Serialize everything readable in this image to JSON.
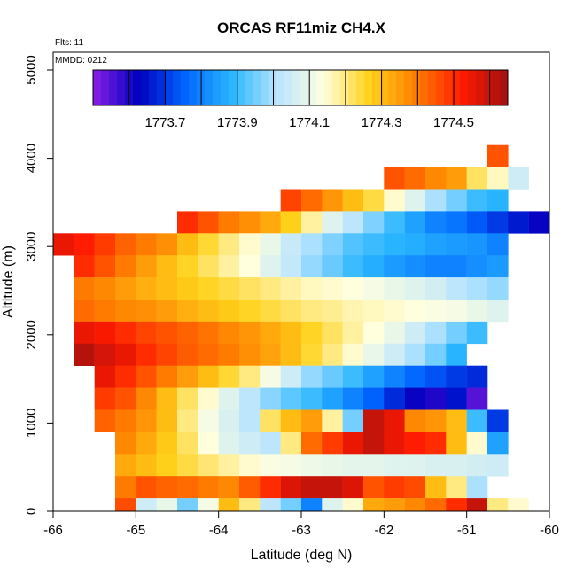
{
  "chart_data": {
    "type": "heatmap",
    "title": "ORCAS RF11miz CH4.X",
    "xlabel": "Latitude (deg N)",
    "ylabel": "Altitude (m)",
    "annotations": [
      "Flts: 11",
      "MMDD: 0212"
    ],
    "xlim": [
      -66,
      -60
    ],
    "ylim": [
      0,
      5250
    ],
    "x_ticks": [
      -66,
      -65,
      -64,
      -63,
      -62,
      -61,
      -60
    ],
    "x_tick_labels": [
      "-66",
      "-65",
      "-64",
      "-63",
      "-62",
      "-61",
      "-60"
    ],
    "y_ticks": [
      0,
      1000,
      2000,
      3000,
      4000,
      5000
    ],
    "y_tick_labels": [
      "0",
      "1000",
      "2000",
      "3000",
      "4000",
      "5000"
    ],
    "colorbar": {
      "min": 1773.5,
      "max": 1774.65,
      "ticks": [
        1773.7,
        1773.9,
        1774.1,
        1774.3,
        1774.5
      ],
      "tick_labels": [
        "1773.7",
        "1773.9",
        "1774.1",
        "1774.3",
        "1774.5"
      ],
      "palette": [
        "#8a1fe6",
        "#0000c0",
        "#0066ff",
        "#29b6ff",
        "#b8e4ff",
        "#ffffe0",
        "#ffd21a",
        "#ff7f00",
        "#ff1a00",
        "#a01010"
      ]
    },
    "cell_lat_width": 0.25,
    "cell_alt_height": 250,
    "lat_start": -66.0,
    "cells": [
      {
        "alt": 3900,
        "lat0": -60.75,
        "values": [
          1774.45
        ]
      },
      {
        "alt": 3650,
        "lat0": -62.0,
        "values": [
          1774.45,
          1774.42,
          1774.38,
          1774.35,
          1774.22,
          1774.16,
          1774.05
        ]
      },
      {
        "alt": 3400,
        "lat0": -63.25,
        "values": [
          1774.47,
          1774.42,
          1774.36,
          1774.3,
          1774.24,
          1774.15,
          1774.08,
          1774.0,
          1773.95,
          1773.9,
          1773.88
        ]
      },
      {
        "alt": 3150,
        "lat0": -64.5,
        "values": [
          1774.5,
          1774.45,
          1774.4,
          1774.37,
          1774.33,
          1774.27,
          1774.18,
          1774.08,
          1774.02,
          1773.96,
          1773.9,
          1773.85,
          1773.8,
          1773.78,
          1773.74,
          1773.7,
          1773.66,
          1773.62
        ]
      },
      {
        "alt": 2900,
        "lat0": -66.0,
        "values": [
          1774.55,
          1774.52,
          1774.48,
          1774.43,
          1774.4,
          1774.37,
          1774.3,
          1774.25,
          1774.2,
          1774.15,
          1774.1,
          1774.04,
          1774.0,
          1773.96,
          1773.92,
          1773.9,
          1773.88,
          1773.87,
          1773.85,
          1773.84,
          1773.83,
          1773.8
        ]
      },
      {
        "alt": 2650,
        "lat0": -65.75,
        "values": [
          1774.5,
          1774.45,
          1774.4,
          1774.35,
          1774.3,
          1774.26,
          1774.22,
          1774.18,
          1774.14,
          1774.08,
          1774.03,
          1773.98,
          1773.94,
          1773.9,
          1773.87,
          1773.84,
          1773.82,
          1773.8,
          1773.8,
          1773.82,
          1773.84
        ]
      },
      {
        "alt": 2400,
        "lat0": -65.75,
        "values": [
          1774.4,
          1774.38,
          1774.35,
          1774.32,
          1774.3,
          1774.28,
          1774.26,
          1774.24,
          1774.22,
          1774.2,
          1774.18,
          1774.16,
          1774.15,
          1774.14,
          1774.12,
          1774.1,
          1774.08,
          1774.06,
          1774.02,
          1774.0,
          1773.98
        ]
      },
      {
        "alt": 2150,
        "lat0": -65.75,
        "values": [
          1774.42,
          1774.4,
          1774.38,
          1774.37,
          1774.35,
          1774.32,
          1774.3,
          1774.28,
          1774.26,
          1774.24,
          1774.22,
          1774.2,
          1774.19,
          1774.17,
          1774.16,
          1774.15,
          1774.14,
          1774.13,
          1774.12,
          1774.1,
          1774.08
        ]
      },
      {
        "alt": 1900,
        "lat0": -65.75,
        "values": [
          1774.55,
          1774.53,
          1774.5,
          1774.47,
          1774.45,
          1774.43,
          1774.41,
          1774.38,
          1774.36,
          1774.33,
          1774.3,
          1774.26,
          1774.22,
          1774.18,
          1774.14,
          1774.1,
          1774.05,
          1774.0,
          1773.95,
          1773.9
        ]
      },
      {
        "alt": 1650,
        "lat0": -65.75,
        "values": [
          1774.62,
          1774.58,
          1774.55,
          1774.5,
          1774.47,
          1774.44,
          1774.42,
          1774.4,
          1774.37,
          1774.34,
          1774.3,
          1774.25,
          1774.2,
          1774.15,
          1774.1,
          1774.05,
          1774.0,
          1773.95,
          1773.88
        ]
      },
      {
        "alt": 1400,
        "lat0": -65.5,
        "values": [
          1774.55,
          1774.5,
          1774.45,
          1774.4,
          1774.35,
          1774.3,
          1774.25,
          1774.2,
          1774.12,
          1774.05,
          1773.98,
          1773.94,
          1773.9,
          1773.85,
          1773.8,
          1773.76,
          1773.73,
          1773.7,
          1773.68
        ]
      },
      {
        "alt": 1150,
        "lat0": -65.5,
        "values": [
          1774.48,
          1774.45,
          1774.38,
          1774.3,
          1774.22,
          1774.15,
          1774.08,
          1774.02,
          1773.97,
          1773.93,
          1773.9,
          1773.85,
          1773.8,
          1773.75,
          1773.68,
          1773.62,
          1773.6,
          1773.65,
          1773.55
        ]
      },
      {
        "alt": 900,
        "lat0": -65.5,
        "values": [
          1774.43,
          1774.4,
          1774.36,
          1774.3,
          1774.2,
          1774.12,
          1774.07,
          1774.02,
          1774.22,
          1774.3,
          1774.35,
          1774.18,
          1773.95,
          1774.6,
          1774.55,
          1774.38,
          1774.36,
          1774.3,
          1773.9,
          1773.7
        ]
      },
      {
        "alt": 650,
        "lat0": -65.25,
        "values": [
          1774.38,
          1774.33,
          1774.28,
          1774.22,
          1774.14,
          1774.08,
          1774.05,
          1774.02,
          1774.2,
          1774.42,
          1774.48,
          1774.55,
          1774.6,
          1774.55,
          1774.52,
          1774.5,
          1774.3,
          1774.15,
          1773.85
        ]
      },
      {
        "alt": 400,
        "lat0": -65.25,
        "values": [
          1774.33,
          1774.3,
          1774.27,
          1774.24,
          1774.21,
          1774.18,
          1774.15,
          1774.13,
          1774.12,
          1774.11,
          1774.1,
          1774.09,
          1774.09,
          1774.08,
          1774.08,
          1774.07,
          1774.07,
          1774.06,
          1774.05
        ]
      },
      {
        "alt": 150,
        "lat0": -65.25,
        "values": [
          1774.4,
          1774.45,
          1774.43,
          1774.42,
          1774.4,
          1774.38,
          1774.44,
          1774.5,
          1774.57,
          1774.6,
          1774.6,
          1774.57,
          1774.45,
          1774.48,
          1774.46,
          1774.3,
          1774.2,
          1774.0
        ]
      },
      {
        "alt": -100,
        "lat0": -65.25,
        "values": [
          1774.46,
          1774.05,
          1774.1,
          1773.95,
          1774.12,
          1774.3,
          1774.2,
          1774.02,
          1773.95,
          1773.8,
          1774.08,
          1774.15,
          1774.33,
          1774.35,
          1774.38,
          1774.42,
          1774.5,
          1774.6,
          1774.2,
          1774.15
        ]
      }
    ]
  }
}
